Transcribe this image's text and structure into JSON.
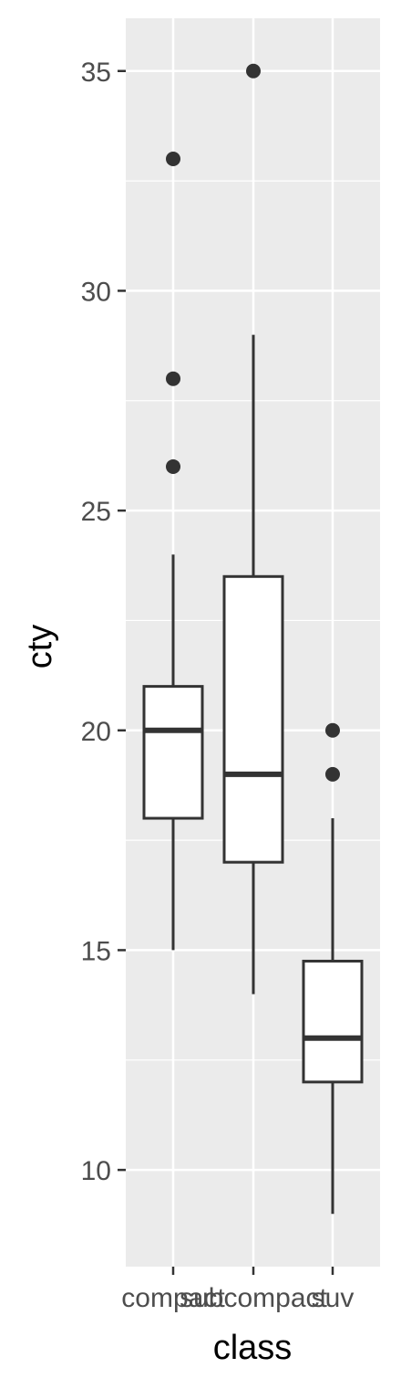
{
  "chart_data": {
    "type": "boxplot",
    "xlabel": "class",
    "ylabel": "cty",
    "categories": [
      "compact",
      "subcompact",
      "suv"
    ],
    "ylim": [
      7.8,
      36.2
    ],
    "y_ticks": [
      10,
      15,
      20,
      25,
      30,
      35
    ],
    "y_tick_labels": [
      "10",
      "15",
      "20",
      "25",
      "30",
      "35"
    ],
    "grid": true,
    "boxes": [
      {
        "category": "compact",
        "whisker_low": 15,
        "q1": 18,
        "median": 20,
        "q3": 21,
        "whisker_high": 24,
        "outliers": [
          26,
          28,
          33
        ]
      },
      {
        "category": "subcompact",
        "whisker_low": 14,
        "q1": 17,
        "median": 19,
        "q3": 23.5,
        "whisker_high": 29,
        "outliers": [
          35
        ]
      },
      {
        "category": "suv",
        "whisker_low": 9,
        "q1": 12,
        "median": 13,
        "q3": 14.75,
        "whisker_high": 18,
        "outliers": [
          19,
          20
        ]
      }
    ],
    "colors": {
      "panel": "#EBEBEB",
      "grid": "#FFFFFF",
      "box_fill": "#FFFFFF",
      "box_line": "#333333",
      "tick_text": "#4D4D4D",
      "axis_title": "#000000"
    }
  }
}
